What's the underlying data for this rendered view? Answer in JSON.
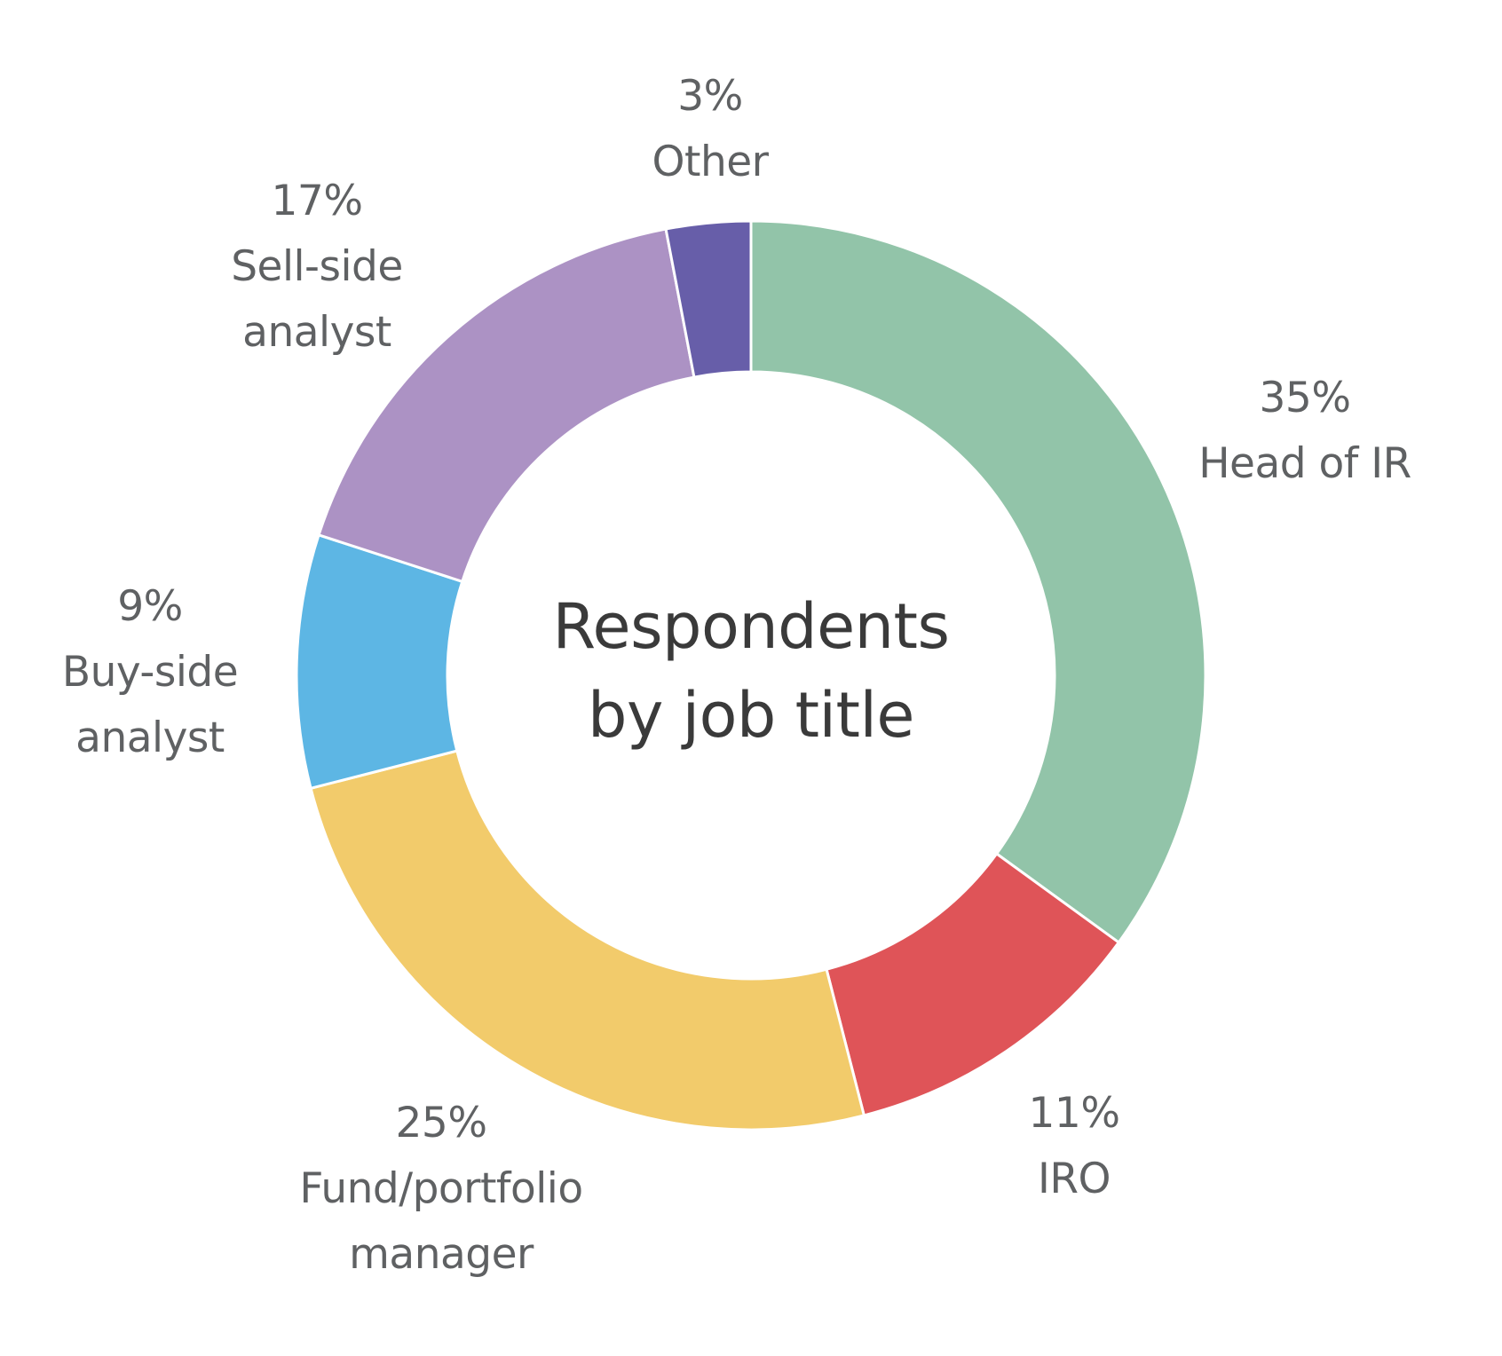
{
  "chart_data": {
    "type": "pie",
    "style": "donut",
    "center_title": [
      "Respondents",
      "by job title"
    ],
    "slices": [
      {
        "category": "Head of IR",
        "value": 35,
        "percent_label": "35%",
        "label_lines": [
          "Head of IR"
        ],
        "color": "#92c4a9"
      },
      {
        "category": "IRO",
        "value": 11,
        "percent_label": "11%",
        "label_lines": [
          "IRO"
        ],
        "color": "#df5458"
      },
      {
        "category": "Fund/portfolio manager",
        "value": 25,
        "percent_label": "25%",
        "label_lines": [
          "Fund/portfolio",
          "manager"
        ],
        "color": "#f2cb6b"
      },
      {
        "category": "Buy-side analyst",
        "value": 9,
        "percent_label": "9%",
        "label_lines": [
          "Buy-side",
          "analyst"
        ],
        "color": "#5db6e4"
      },
      {
        "category": "Sell-side analyst",
        "value": 17,
        "percent_label": "17%",
        "label_lines": [
          "Sell-side",
          "analyst"
        ],
        "color": "#ac92c4"
      },
      {
        "category": "Other",
        "value": 3,
        "percent_label": "3%",
        "label_lines": [
          "Other"
        ],
        "color": "#675ea9"
      }
    ],
    "start": "top",
    "direction": "clockwise",
    "legend": "none (direct labels)"
  }
}
